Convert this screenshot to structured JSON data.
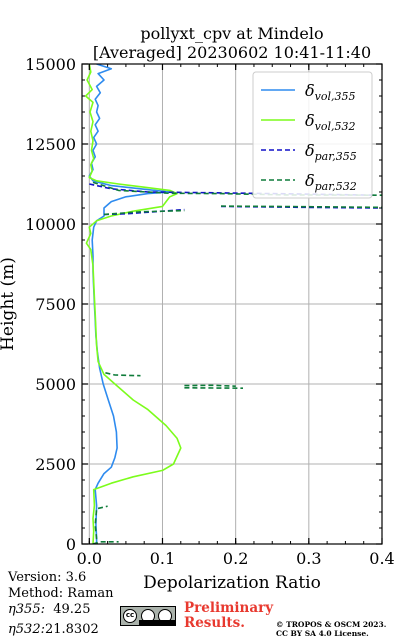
{
  "header": {
    "title_line1": "pollyxt_cpv at Mindelo",
    "title_line2": "[Averaged] 20230602 10:41-11:40"
  },
  "chart_data": {
    "type": "line",
    "xlabel": "Depolarization Ratio",
    "ylabel": "Height (m)",
    "xlim": [
      -0.01,
      0.4
    ],
    "ylim": [
      0,
      15000
    ],
    "xticks": [
      "0.0",
      "0.1",
      "0.2",
      "0.3",
      "0.4"
    ],
    "xtick_values": [
      0.0,
      0.1,
      0.2,
      0.3,
      0.4
    ],
    "yticks": [
      "0",
      "2500",
      "5000",
      "7500",
      "10000",
      "12500",
      "15000"
    ],
    "ytick_values": [
      0,
      2500,
      5000,
      7500,
      10000,
      12500,
      15000
    ],
    "grid": true,
    "legend_position": "top-right",
    "series": [
      {
        "name": "δvol,355",
        "label_base": "δ",
        "label_sub": "vol,355",
        "color": "#2e8bef",
        "style": "solid",
        "points": [
          [
            0.01,
            0
          ],
          [
            0.01,
            200
          ],
          [
            0.009,
            600
          ],
          [
            0.01,
            1200
          ],
          [
            0.008,
            1700
          ],
          [
            0.012,
            1900
          ],
          [
            0.02,
            2200
          ],
          [
            0.03,
            2400
          ],
          [
            0.035,
            2700
          ],
          [
            0.038,
            3000
          ],
          [
            0.037,
            3500
          ],
          [
            0.033,
            4000
          ],
          [
            0.026,
            4500
          ],
          [
            0.019,
            5000
          ],
          [
            0.014,
            5500
          ],
          [
            0.011,
            6000
          ],
          [
            0.009,
            6500
          ],
          [
            0.008,
            7000
          ],
          [
            0.007,
            7500
          ],
          [
            0.006,
            8000
          ],
          [
            0.005,
            8500
          ],
          [
            0.005,
            9000
          ],
          [
            0.004,
            9500
          ],
          [
            0.006,
            9900
          ],
          [
            0.01,
            10100
          ],
          [
            0.02,
            10250
          ],
          [
            0.02,
            10500
          ],
          [
            0.03,
            10700
          ],
          [
            0.05,
            10850
          ],
          [
            0.08,
            10950
          ],
          [
            0.11,
            11000
          ],
          [
            0.07,
            11100
          ],
          [
            0.03,
            11200
          ],
          [
            0.005,
            11350
          ],
          [
            0.0,
            11500
          ],
          [
            0.005,
            11700
          ],
          [
            0.003,
            11900
          ],
          [
            0.008,
            12100
          ],
          [
            0.005,
            12300
          ],
          [
            0.01,
            12500
          ],
          [
            0.006,
            12700
          ],
          [
            0.012,
            12900
          ],
          [
            0.008,
            13100
          ],
          [
            0.014,
            13300
          ],
          [
            0.01,
            13500
          ],
          [
            0.012,
            13700
          ],
          [
            0.008,
            13900
          ],
          [
            0.015,
            14100
          ],
          [
            0.01,
            14300
          ],
          [
            0.02,
            14500
          ],
          [
            0.012,
            14700
          ],
          [
            0.03,
            14850
          ],
          [
            0.01,
            15000
          ]
        ]
      },
      {
        "name": "δvol,532",
        "label_base": "δ",
        "label_sub": "vol,532",
        "color": "#7cfc1c",
        "style": "solid",
        "points": [
          [
            0.005,
            0
          ],
          [
            0.006,
            400
          ],
          [
            0.005,
            800
          ],
          [
            0.007,
            1200
          ],
          [
            0.006,
            1700
          ],
          [
            0.03,
            1900
          ],
          [
            0.06,
            2100
          ],
          [
            0.1,
            2300
          ],
          [
            0.115,
            2500
          ],
          [
            0.125,
            3000
          ],
          [
            0.12,
            3300
          ],
          [
            0.105,
            3700
          ],
          [
            0.08,
            4200
          ],
          [
            0.06,
            4500
          ],
          [
            0.035,
            5000
          ],
          [
            0.02,
            5300
          ],
          [
            0.012,
            5700
          ],
          [
            0.01,
            6200
          ],
          [
            0.009,
            6700
          ],
          [
            0.008,
            7200
          ],
          [
            0.007,
            7700
          ],
          [
            0.006,
            8200
          ],
          [
            0.005,
            8700
          ],
          [
            0.002,
            9200
          ],
          [
            -0.004,
            9400
          ],
          [
            0.002,
            9700
          ],
          [
            0.0,
            9900
          ],
          [
            0.01,
            10100
          ],
          [
            0.03,
            10250
          ],
          [
            0.06,
            10400
          ],
          [
            0.1,
            10550
          ],
          [
            0.105,
            10700
          ],
          [
            0.11,
            10850
          ],
          [
            0.12,
            10950
          ],
          [
            0.11,
            11050
          ],
          [
            0.075,
            11150
          ],
          [
            0.04,
            11250
          ],
          [
            0.01,
            11350
          ],
          [
            0.0,
            11450
          ],
          [
            0.004,
            11650
          ],
          [
            0.002,
            11850
          ],
          [
            0.006,
            12050
          ],
          [
            0.003,
            12300
          ],
          [
            0.005,
            12600
          ],
          [
            0.002,
            12900
          ],
          [
            0.005,
            13200
          ],
          [
            0.001,
            13500
          ],
          [
            0.005,
            13800
          ],
          [
            -0.005,
            14000
          ],
          [
            0.004,
            14200
          ],
          [
            -0.003,
            14500
          ],
          [
            0.002,
            14750
          ],
          [
            0.0,
            15000
          ]
        ]
      },
      {
        "name": "δpar,355",
        "label_base": "δ",
        "label_sub": "par,355",
        "color": "#1010c8",
        "style": "dashed",
        "segments": [
          [
            [
              0.0,
              11250
            ],
            [
              0.03,
              11100
            ],
            [
              0.08,
              11000
            ],
            [
              0.15,
              10980
            ],
            [
              0.25,
              10950
            ],
            [
              0.39,
              10900
            ]
          ],
          [
            [
              0.02,
              10300
            ],
            [
              0.05,
              10320
            ],
            [
              0.13,
              10450
            ]
          ],
          [
            [
              0.18,
              10550
            ],
            [
              0.3,
              10520
            ],
            [
              0.4,
              10500
            ]
          ]
        ]
      },
      {
        "name": "δpar,532",
        "label_base": "δ",
        "label_sub": "par,532",
        "color": "#0f7c3a",
        "style": "dashed",
        "segments": [
          [
            [
              0.005,
              0
            ],
            [
              0.015,
              70
            ],
            [
              0.04,
              70
            ]
          ],
          [
            [
              0.01,
              150
            ],
            [
              0.008,
              600
            ],
            [
              0.01,
              1100
            ],
            [
              0.025,
              1180
            ]
          ],
          [
            [
              0.022,
              5350
            ],
            [
              0.035,
              5280
            ],
            [
              0.07,
              5260
            ]
          ],
          [
            [
              0.13,
              4950
            ],
            [
              0.17,
              4960
            ],
            [
              0.2,
              4930
            ]
          ],
          [
            [
              0.13,
              4880
            ],
            [
              0.21,
              4870
            ]
          ],
          [
            [
              0.005,
              11300
            ],
            [
              0.04,
              11050
            ],
            [
              0.11,
              10960
            ],
            [
              0.18,
              10950
            ],
            [
              0.27,
              10910
            ],
            [
              0.4,
              10900
            ]
          ],
          [
            [
              0.02,
              10300
            ],
            [
              0.07,
              10380
            ],
            [
              0.13,
              10420
            ]
          ],
          [
            [
              0.18,
              10560
            ],
            [
              0.3,
              10540
            ],
            [
              0.4,
              10520
            ]
          ]
        ]
      }
    ]
  },
  "footer": {
    "version": "Version: 3.6",
    "method": "Method: Raman",
    "eta355_label": "η355:",
    "eta355_value": "49.25",
    "eta532_label": "η532:",
    "eta532_value": "21.8302",
    "license_badge_icon": "cc-by-sa-badge-icon",
    "preliminary_line1": "Preliminary",
    "preliminary_line2": "Results.",
    "copyright_line1": "© TROPOS & OSCM 2023.",
    "copyright_line2": "CC BY SA 4.0 License.",
    "prelim_color": "#e8392f"
  }
}
